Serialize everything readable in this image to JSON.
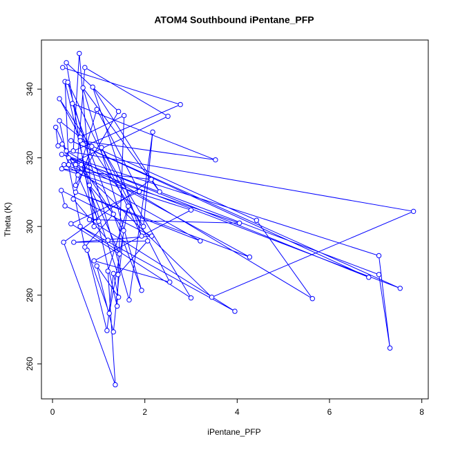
{
  "chart_data": {
    "type": "line",
    "title": "ATOM4 Southbound iPentane_PFP",
    "x_label": "iPentane_PFP",
    "y_label": "Theta (K)",
    "series": [
      {
        "color": "#0000ff",
        "x": [
          0.22,
          2.77,
          0.45,
          0.58,
          0.9,
          0.3,
          1.43,
          0.5,
          0.7,
          2.5,
          0.35,
          0.27,
          1.4,
          1.55,
          0.6,
          0.15,
          1.97,
          2.17,
          1.66,
          0.33,
          1.93,
          0.87,
          2.32,
          0.66,
          1.93,
          0.43,
          3.53,
          0.6,
          4.42,
          5.63,
          0.3,
          7.82,
          3.45,
          0.5,
          7.53,
          0.4,
          6.85,
          0.2,
          7.07,
          7.31,
          7.07,
          0.35,
          4.27,
          0.5,
          3.2,
          0.25,
          4.05,
          0.8,
          3.95,
          0.6,
          3.0,
          1.06,
          2.54,
          0.9,
          3.0,
          0.2,
          2.14,
          0.24,
          1.36,
          1.2,
          1.64,
          1.23,
          0.75,
          1.18,
          1.32,
          1.43,
          0.96,
          1.32,
          1.54,
          0.62,
          1.42,
          2.06,
          0.46,
          2.15,
          0.19,
          0.27,
          1.0,
          0.07,
          0.12,
          0.21,
          0.55,
          0.96,
          1.88,
          0.4,
          1.45,
          0.8,
          1.32,
          0.7,
          0.15,
          0.85,
          0.45,
          1.2
        ],
        "values": [
          346.3,
          335.5,
          322,
          350.4,
          300,
          347.7,
          333.5,
          312,
          346.3,
          332.1,
          318,
          342.2,
          276.8,
          332.3,
          326,
          337.2,
          300,
          327.5,
          278.6,
          342,
          297.2,
          340.6,
          310.1,
          340.4,
          281.4,
          335.8,
          319.4,
          325,
          301.8,
          279,
          322,
          304.4,
          279.4,
          318,
          282,
          325,
          285.2,
          321,
          291.5,
          264.6,
          286,
          320,
          291.1,
          310,
          295.8,
          318,
          301,
          302,
          275.3,
          300,
          279.2,
          323,
          283.8,
          290,
          304.8,
          316.8,
          313.7,
          295.4,
          253.9,
          287,
          305.9,
          274.7,
          293.1,
          269.7,
          286.3,
          279.4,
          288.5,
          269.3,
          298.8,
          318,
          286,
          295.8,
          295.4,
          297.2,
          310.5,
          306,
          301.5,
          328.9,
          323.5,
          324,
          315,
          334.1,
          310.2,
          300.8,
          292,
          312,
          303.6,
          294,
          330.8,
          323.3,
          308,
          296
        ]
      }
    ],
    "xlim": [
      -0.24,
      8.14
    ],
    "ylim": [
      249.8,
      354.3
    ],
    "xticks": [
      0,
      2,
      4,
      6,
      8
    ],
    "yticks": [
      260,
      280,
      300,
      320,
      340
    ]
  }
}
